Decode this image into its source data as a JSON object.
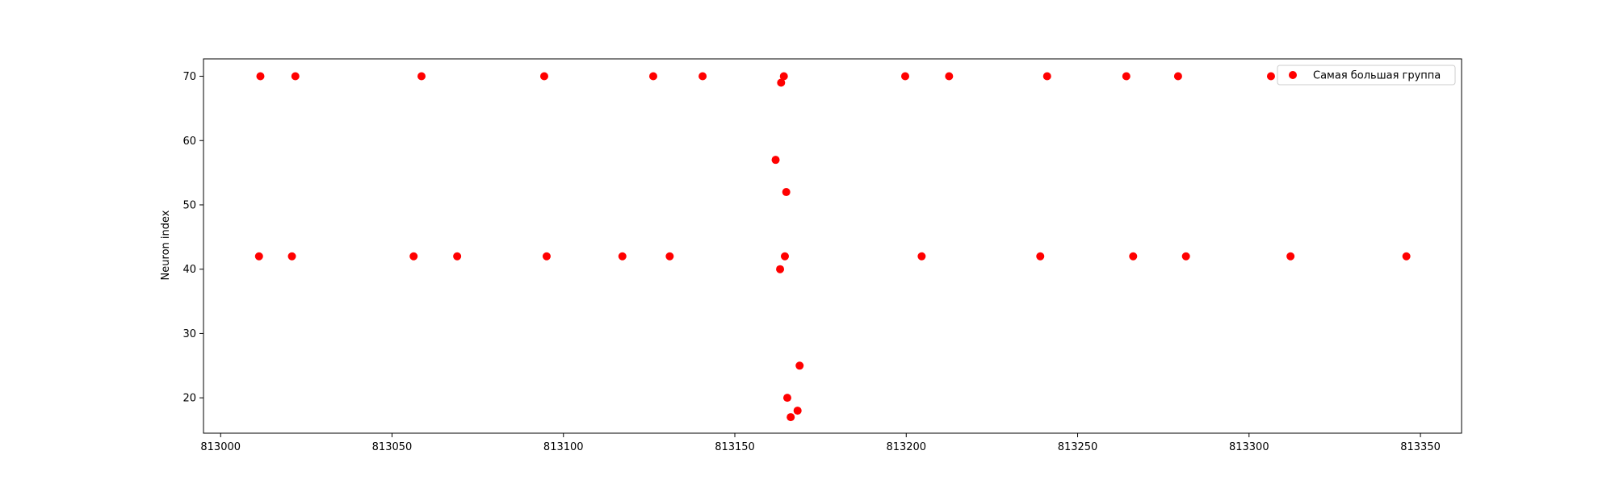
{
  "chart_data": {
    "type": "scatter",
    "title": "",
    "xlabel": "",
    "ylabel": "Neuron index",
    "xlim": [
      812995,
      813362
    ],
    "ylim": [
      14.5,
      72.7
    ],
    "xticks": [
      813000,
      813050,
      813100,
      813150,
      813200,
      813250,
      813300,
      813350
    ],
    "yticks": [
      20,
      30,
      40,
      50,
      60,
      70
    ],
    "grid": false,
    "legend_position": "top-right",
    "series": [
      {
        "name": "Самая большая группа",
        "color": "#ff0000",
        "marker": "circle",
        "points": [
          {
            "x": 813011.6,
            "y": 70
          },
          {
            "x": 813021.8,
            "y": 70
          },
          {
            "x": 813058.6,
            "y": 70
          },
          {
            "x": 813094.4,
            "y": 70
          },
          {
            "x": 813126.2,
            "y": 70
          },
          {
            "x": 813140.6,
            "y": 70
          },
          {
            "x": 813164.3,
            "y": 70
          },
          {
            "x": 813163.5,
            "y": 69
          },
          {
            "x": 813199.7,
            "y": 70
          },
          {
            "x": 813212.5,
            "y": 70
          },
          {
            "x": 813241.1,
            "y": 70
          },
          {
            "x": 813264.2,
            "y": 70
          },
          {
            "x": 813279.3,
            "y": 70
          },
          {
            "x": 813306.4,
            "y": 70
          },
          {
            "x": 813161.9,
            "y": 57
          },
          {
            "x": 813165.0,
            "y": 52
          },
          {
            "x": 813011.2,
            "y": 42
          },
          {
            "x": 813020.8,
            "y": 42
          },
          {
            "x": 813056.3,
            "y": 42
          },
          {
            "x": 813069.0,
            "y": 42
          },
          {
            "x": 813095.1,
            "y": 42
          },
          {
            "x": 813117.2,
            "y": 42
          },
          {
            "x": 813131.0,
            "y": 42
          },
          {
            "x": 813164.6,
            "y": 42
          },
          {
            "x": 813204.5,
            "y": 42
          },
          {
            "x": 813239.1,
            "y": 42
          },
          {
            "x": 813266.2,
            "y": 42
          },
          {
            "x": 813281.6,
            "y": 42
          },
          {
            "x": 813312.1,
            "y": 42
          },
          {
            "x": 813345.9,
            "y": 42
          },
          {
            "x": 813163.2,
            "y": 40
          },
          {
            "x": 813168.9,
            "y": 25
          },
          {
            "x": 813165.3,
            "y": 20
          },
          {
            "x": 813168.3,
            "y": 18
          },
          {
            "x": 813166.3,
            "y": 17
          }
        ]
      }
    ]
  }
}
